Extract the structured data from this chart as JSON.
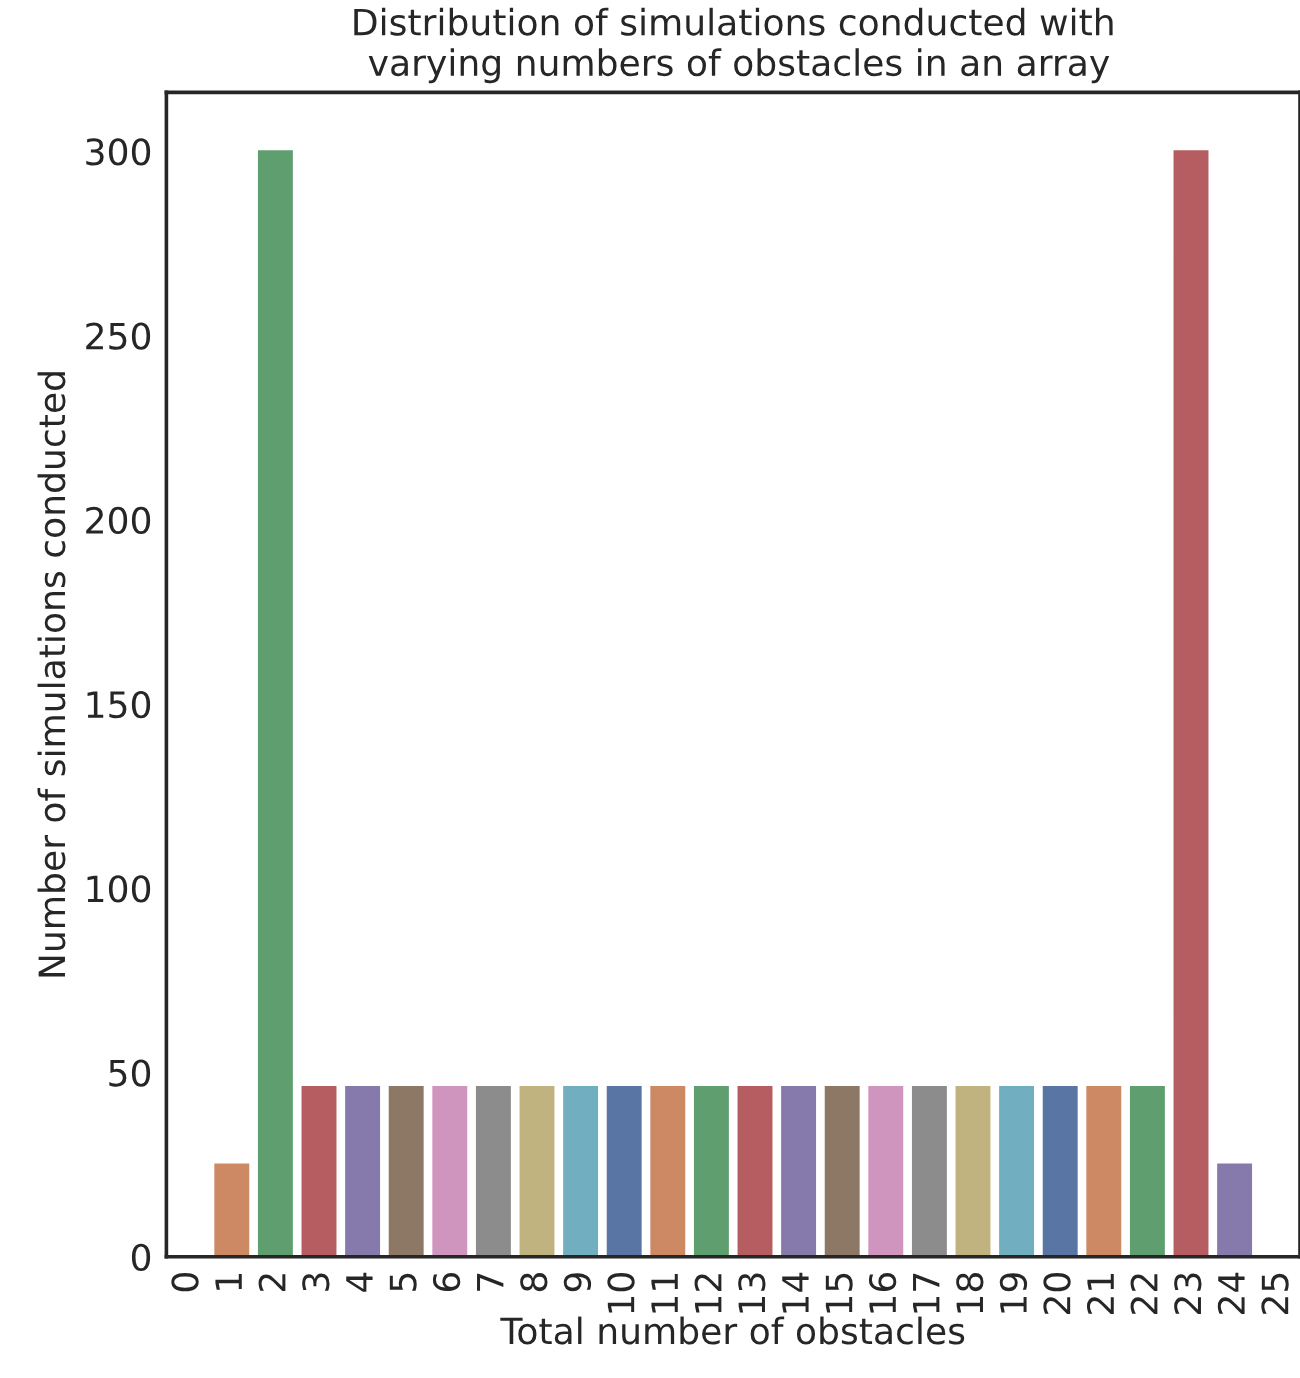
{
  "chart_data": {
    "type": "bar",
    "title": "Distribution of simulations conducted with\n varying numbers of obstacles in an array",
    "xlabel": "Total number of obstacles",
    "ylabel": "Number of simulations conducted",
    "categories": [
      "0",
      "1",
      "2",
      "3",
      "4",
      "5",
      "6",
      "7",
      "8",
      "9",
      "10",
      "11",
      "12",
      "13",
      "14",
      "15",
      "16",
      "17",
      "18",
      "19",
      "20",
      "21",
      "22",
      "23",
      "24",
      "25"
    ],
    "values": [
      0,
      25,
      300,
      46,
      46,
      46,
      46,
      46,
      46,
      46,
      46,
      46,
      46,
      46,
      46,
      46,
      46,
      46,
      46,
      46,
      46,
      46,
      46,
      300,
      25,
      0
    ],
    "colors": [
      "#5975a4",
      "#cc8963",
      "#5f9e6e",
      "#b55d60",
      "#857aab",
      "#8d7866",
      "#d095bf",
      "#8c8c8c",
      "#c1b37f",
      "#71aec0",
      "#5975a4",
      "#cc8963",
      "#5f9e6e",
      "#b55d60",
      "#857aab",
      "#8d7866",
      "#d095bf",
      "#8c8c8c",
      "#c1b37f",
      "#71aec0",
      "#5975a4",
      "#cc8963",
      "#5f9e6e",
      "#b55d60",
      "#857aab",
      "#8d7866"
    ],
    "ylim": [
      0,
      316
    ],
    "yticks": [
      0,
      50,
      100,
      150,
      200,
      250,
      300
    ],
    "grid": false,
    "legend": false
  }
}
